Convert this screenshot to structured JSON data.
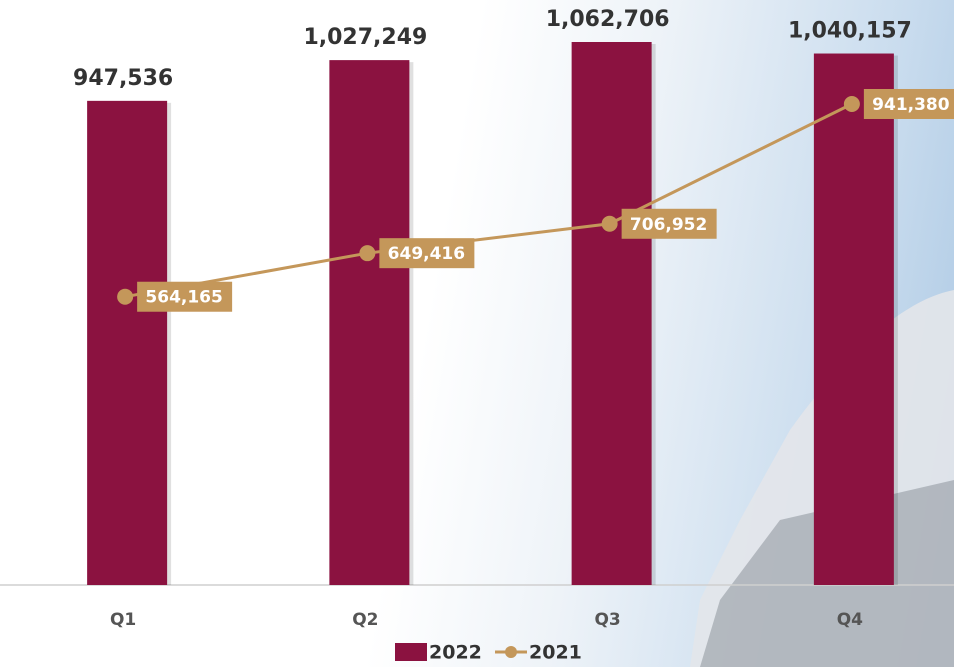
{
  "chart_data": {
    "type": "bar_line",
    "categories": [
      "Q1",
      "Q2",
      "Q3",
      "Q4"
    ],
    "series": [
      {
        "name": "2022",
        "type": "bar",
        "color": "#8b1240",
        "values": [
          947536,
          1027249,
          1062706,
          1040157
        ],
        "value_labels": [
          "947,536",
          "1,027,249",
          "1,062,706",
          "1,040,157"
        ]
      },
      {
        "name": "2021",
        "type": "line",
        "color": "#c4975a",
        "values": [
          564165,
          649416,
          706952,
          941380
        ],
        "value_labels": [
          "564,165",
          "649,416",
          "706,952",
          "941,380"
        ]
      }
    ]
  }
}
